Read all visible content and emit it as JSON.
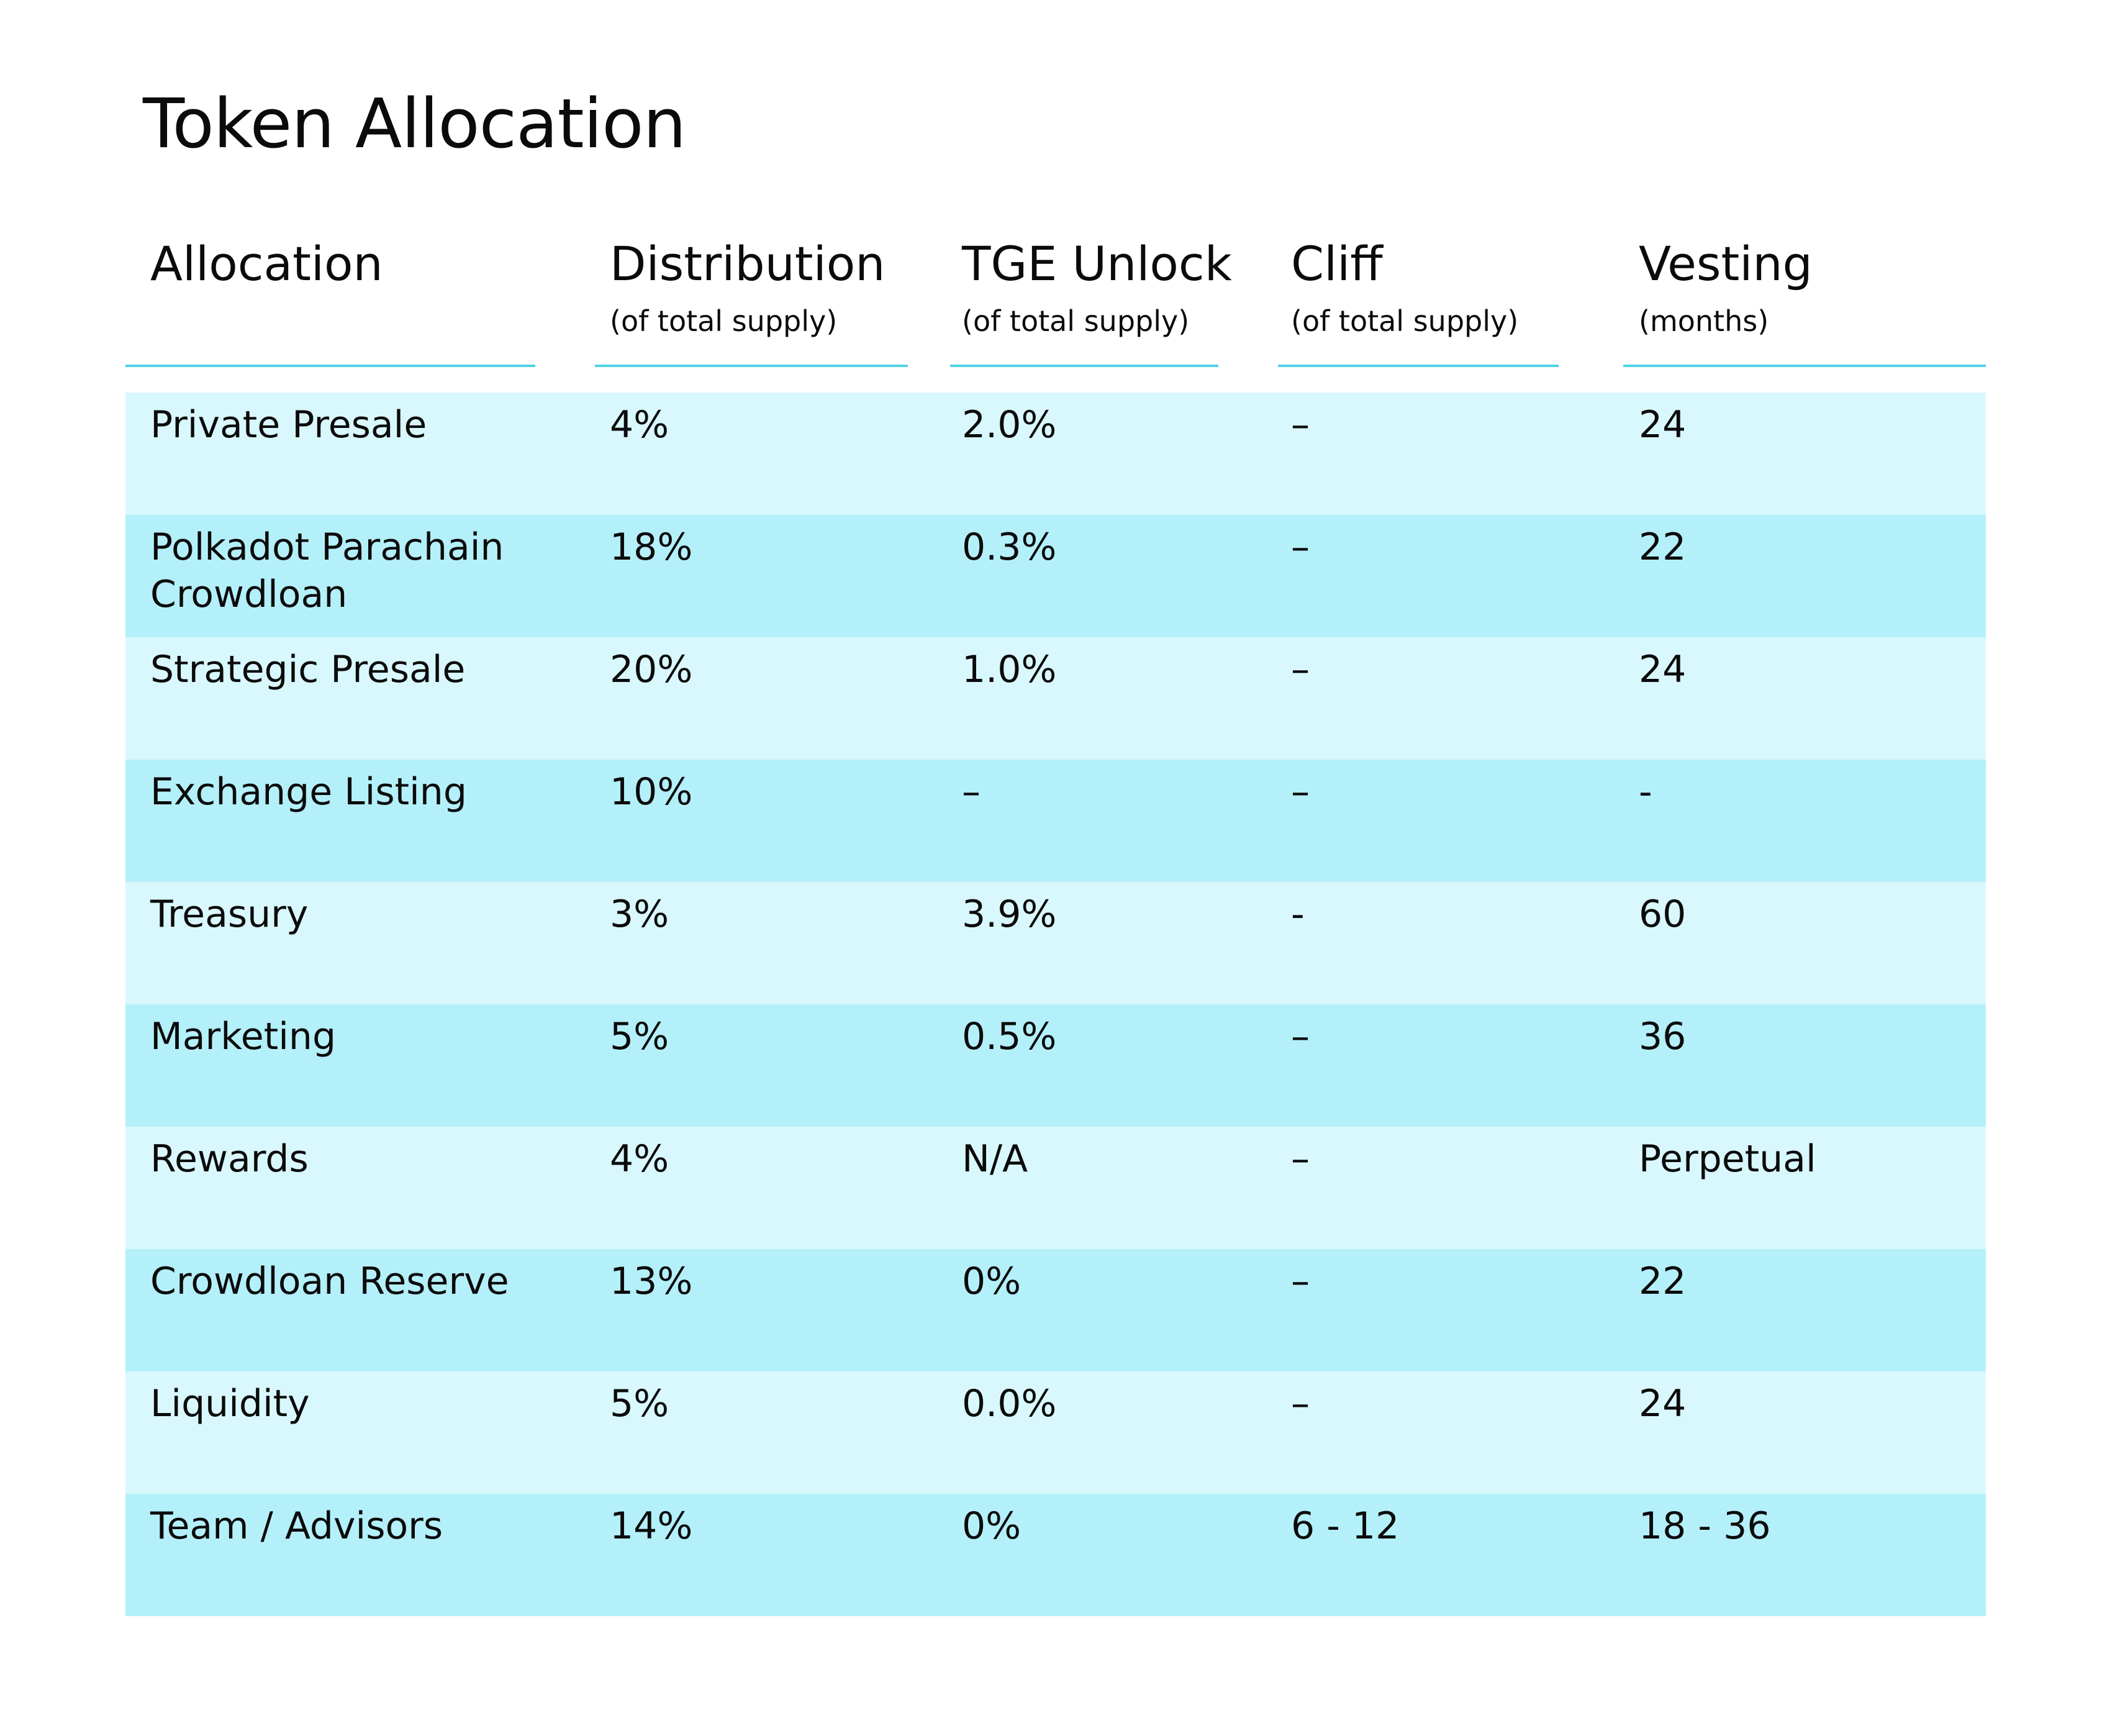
{
  "title": "Token Allocation",
  "columns": [
    {
      "title": "Allocation",
      "subtitle": ""
    },
    {
      "title": "Distribution",
      "subtitle": "(of total supply)"
    },
    {
      "title": "TGE Unlock",
      "subtitle": "(of total supply)"
    },
    {
      "title": "Cliff",
      "subtitle": "(of total supply)"
    },
    {
      "title": "Vesting",
      "subtitle": "(months)"
    }
  ],
  "rows": [
    {
      "allocation": "Private Presale",
      "distribution": "4%",
      "tge_unlock": "2.0%",
      "cliff": "–",
      "vesting": "24"
    },
    {
      "allocation": "Polkadot Parachain Crowdloan",
      "distribution": "18%",
      "tge_unlock": "0.3%",
      "cliff": "–",
      "vesting": "22"
    },
    {
      "allocation": "Strategic Presale",
      "distribution": "20%",
      "tge_unlock": "1.0%",
      "cliff": "–",
      "vesting": "24"
    },
    {
      "allocation": "Exchange Listing",
      "distribution": "10%",
      "tge_unlock": "–",
      "cliff": "–",
      "vesting": "-"
    },
    {
      "allocation": "Treasury",
      "distribution": "3%",
      "tge_unlock": "3.9%",
      "cliff": "-",
      "vesting": "60"
    },
    {
      "allocation": "Marketing",
      "distribution": "5%",
      "tge_unlock": "0.5%",
      "cliff": "–",
      "vesting": "36"
    },
    {
      "allocation": "Rewards",
      "distribution": "4%",
      "tge_unlock": "N/A",
      "cliff": "–",
      "vesting": "Perpetual"
    },
    {
      "allocation": "Crowdloan Reserve",
      "distribution": "13%",
      "tge_unlock": "0%",
      "cliff": "–",
      "vesting": "22"
    },
    {
      "allocation": "Liquidity",
      "distribution": "5%",
      "tge_unlock": "0.0%",
      "cliff": "–",
      "vesting": "24"
    },
    {
      "allocation": "Team / Advisors",
      "distribution": "14%",
      "tge_unlock": "0%",
      "cliff": "6 - 12",
      "vesting": "18 - 36"
    }
  ],
  "colors": {
    "row_light": "#d9f8fd",
    "row_dark": "#b4f0fa",
    "header_rule": "#4fd3e6",
    "text": "#0b0b0b"
  }
}
